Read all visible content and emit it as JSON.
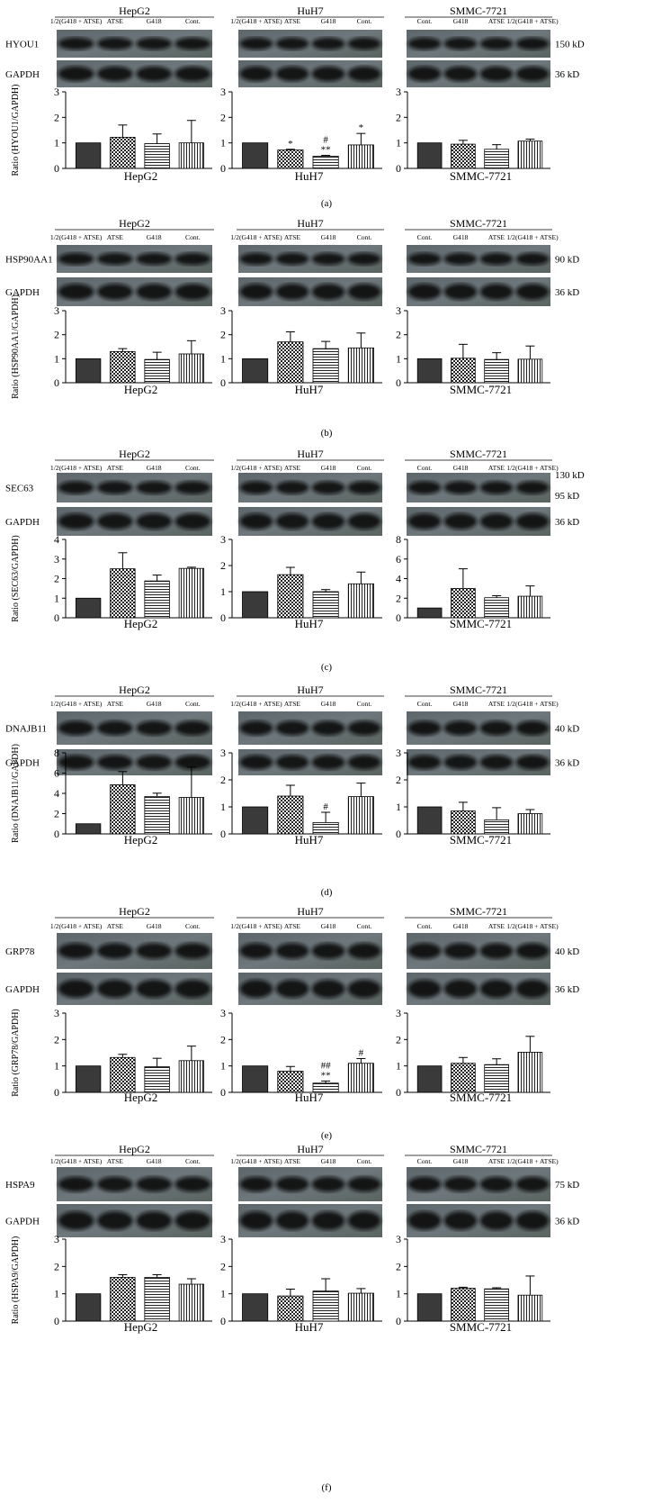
{
  "lines": [
    "HepG2",
    "HuH7",
    "SMMC-7721"
  ],
  "ratio_axis_prefix": "Ratio",
  "legend": {
    "short": [
      {
        "key": "cont",
        "label": "Cont",
        "pattern": "solid"
      },
      {
        "key": "atse",
        "label": "ATSE",
        "pattern": "hlines"
      },
      {
        "key": "g418",
        "label": "G418",
        "pattern": "checker"
      },
      {
        "key": "half",
        "label": "1/2(G418 + ATSE)",
        "pattern": "vlines"
      }
    ],
    "dot": [
      {
        "key": "cont",
        "label": "Cont.",
        "pattern": "solid"
      },
      {
        "key": "atse",
        "label": "ATSE",
        "pattern": "hlines"
      },
      {
        "key": "g418",
        "label": "G418",
        "pattern": "checker"
      },
      {
        "key": "half",
        "label": "1/2(G418 + ATSE)",
        "pattern": "vlines"
      }
    ]
  },
  "lane_label_sets": {
    "rev": [
      "1/2(G418 + ATSE)",
      "ATSE",
      "G418",
      "Cont."
    ],
    "fwd": [
      "Cont.",
      "G418",
      "ATSE",
      "1/2(G418 + ATSE)"
    ],
    "HuH7_rev_wide": [
      "1/2(G418 + ATSE)",
      "ATSE",
      "G418",
      "Cont."
    ]
  },
  "panels": [
    {
      "id": "a",
      "caption": "(a)",
      "protein": "HYOU1",
      "ratio_label": "Ratio (HYOU1/GAPDH)",
      "kd_top": "150 kD",
      "kd_bottom": "36 kD",
      "chart_data": {
        "type": "bar",
        "categories": [
          "Cont",
          "G418",
          "ATSE",
          "1/2(G418 + ATSE)"
        ],
        "ylim": [
          0,
          3
        ],
        "yticks": [
          0,
          1,
          2,
          3
        ],
        "series": [
          {
            "name": "HepG2",
            "values": [
              1.0,
              1.22,
              0.97,
              1.0
            ],
            "errors": [
              0,
              0.48,
              0.38,
              0.88
            ],
            "annotations": [
              "",
              "",
              "",
              ""
            ]
          },
          {
            "name": "HuH7",
            "values": [
              1.0,
              0.72,
              0.48,
              0.92
            ],
            "errors": [
              0,
              0.03,
              0.03,
              0.45
            ],
            "annotations": [
              "",
              "*",
              "#\n**",
              "*"
            ]
          },
          {
            "name": "SMMC-7721",
            "values": [
              1.0,
              0.95,
              0.75,
              1.07
            ],
            "errors": [
              0,
              0.15,
              0.18,
              0.08
            ],
            "annotations": [
              "",
              "",
              "",
              ""
            ]
          }
        ]
      }
    },
    {
      "id": "b",
      "caption": "(b)",
      "protein": "HSP90AA1",
      "ratio_label": "Ratio (HSP90AA1/GAPDH)",
      "kd_top": "90 kD",
      "kd_bottom": "36 kD",
      "chart_data": {
        "type": "bar",
        "categories": [
          "Cont",
          "G418",
          "ATSE",
          "1/2(G418 + ATSE)"
        ],
        "ylim": [
          0,
          3
        ],
        "yticks": [
          0,
          1,
          2,
          3
        ],
        "series": [
          {
            "name": "HepG2",
            "values": [
              1.0,
              1.3,
              0.97,
              1.2
            ],
            "errors": [
              0,
              0.12,
              0.3,
              0.55
            ],
            "annotations": [
              "",
              "",
              "",
              ""
            ]
          },
          {
            "name": "HuH7",
            "values": [
              1.0,
              1.7,
              1.42,
              1.45
            ],
            "errors": [
              0,
              0.42,
              0.3,
              0.62
            ],
            "annotations": [
              "",
              "",
              "",
              ""
            ]
          },
          {
            "name": "SMMC-7721",
            "values": [
              1.0,
              1.02,
              0.97,
              0.98
            ],
            "errors": [
              0,
              0.58,
              0.28,
              0.55
            ],
            "annotations": [
              "",
              "",
              "",
              ""
            ]
          }
        ]
      }
    },
    {
      "id": "c",
      "caption": "(c)",
      "protein": "SEC63",
      "ratio_label": "Ratio (SEC63/GAPDH)",
      "kd_top": "130 kD",
      "kd_mid": "95 kD",
      "kd_bottom": "36 kD",
      "chart_data": {
        "type": "bar",
        "categories": [
          "Cont",
          "G418",
          "ATSE",
          "1/2(G418 + ATSE)"
        ],
        "series": [
          {
            "name": "HepG2",
            "ylim": [
              0,
              4
            ],
            "yticks": [
              0,
              1,
              2,
              3,
              4
            ],
            "values": [
              1.0,
              2.5,
              1.88,
              2.52
            ],
            "errors": [
              0,
              0.82,
              0.3,
              0.06
            ],
            "annotations": [
              "",
              "",
              "",
              ""
            ]
          },
          {
            "name": "HuH7",
            "ylim": [
              0,
              3
            ],
            "yticks": [
              0,
              1,
              2,
              3
            ],
            "values": [
              1.0,
              1.65,
              1.0,
              1.3
            ],
            "errors": [
              0,
              0.28,
              0.08,
              0.45
            ],
            "annotations": [
              "",
              "",
              "",
              ""
            ]
          },
          {
            "name": "SMMC-7721",
            "ylim": [
              0,
              8
            ],
            "yticks": [
              0,
              2,
              4,
              6,
              8
            ],
            "values": [
              1.0,
              3.0,
              2.05,
              2.2
            ],
            "errors": [
              0,
              2.0,
              0.2,
              1.05
            ],
            "annotations": [
              "",
              "",
              "",
              ""
            ]
          }
        ]
      }
    },
    {
      "id": "d",
      "caption": "(d)",
      "protein": "DNAJB11",
      "ratio_label": "Ratio (DNAJB11/GAPDH)",
      "kd_top": "40 kD",
      "kd_bottom": "36 kD",
      "chart_data": {
        "type": "bar",
        "categories": [
          "Cont",
          "G418",
          "ATSE",
          "1/2(G418 + ATSE)"
        ],
        "series": [
          {
            "name": "HepG2",
            "ylim": [
              0,
              8
            ],
            "yticks": [
              0,
              2,
              4,
              6,
              8
            ],
            "values": [
              1.0,
              4.85,
              3.7,
              3.6
            ],
            "errors": [
              0,
              1.3,
              0.32,
              3.0
            ],
            "annotations": [
              "",
              "",
              "",
              ""
            ]
          },
          {
            "name": "HuH7",
            "ylim": [
              0,
              3
            ],
            "yticks": [
              0,
              1,
              2,
              3
            ],
            "values": [
              1.0,
              1.4,
              0.42,
              1.38
            ],
            "errors": [
              0,
              0.4,
              0.38,
              0.5
            ],
            "annotations": [
              "",
              "",
              "#",
              ""
            ]
          },
          {
            "name": "SMMC-7721",
            "ylim": [
              0,
              3
            ],
            "yticks": [
              0,
              1,
              2,
              3
            ],
            "values": [
              1.0,
              0.85,
              0.52,
              0.75
            ],
            "errors": [
              0,
              0.32,
              0.45,
              0.15
            ],
            "annotations": [
              "",
              "",
              "",
              ""
            ]
          }
        ]
      }
    },
    {
      "id": "e",
      "caption": "(e)",
      "protein": "GRP78",
      "ratio_label": "Ratio (GRP78/GAPDH)",
      "kd_top": "40 kD",
      "kd_bottom": "36 kD",
      "chart_data": {
        "type": "bar",
        "categories": [
          "Cont",
          "G418",
          "ATSE",
          "1/2(G418 + ATSE)"
        ],
        "ylim": [
          0,
          3
        ],
        "yticks": [
          0,
          1,
          2,
          3
        ],
        "series": [
          {
            "name": "HepG2",
            "values": [
              1.0,
              1.32,
              0.97,
              1.2
            ],
            "errors": [
              0,
              0.12,
              0.32,
              0.55
            ],
            "annotations": [
              "",
              "",
              "",
              ""
            ]
          },
          {
            "name": "HuH7",
            "values": [
              1.0,
              0.8,
              0.35,
              1.1
            ],
            "errors": [
              0,
              0.18,
              0.08,
              0.18
            ],
            "annotations": [
              "",
              "",
              "##\n**",
              "#"
            ]
          },
          {
            "name": "SMMC-7721",
            "values": [
              1.0,
              1.1,
              1.05,
              1.52
            ],
            "errors": [
              0,
              0.22,
              0.22,
              0.6
            ],
            "annotations": [
              "",
              "",
              "",
              ""
            ]
          }
        ]
      }
    },
    {
      "id": "f",
      "caption": "(f)",
      "protein": "HSPA9",
      "ratio_label": "Ratio (HSPA9/GAPDH)",
      "kd_top": "75 kD",
      "kd_bottom": "36 kD",
      "chart_data": {
        "type": "bar",
        "categories": [
          "Cont",
          "G418",
          "ATSE",
          "1/2(G418 + ATSE)"
        ],
        "ylim": [
          0,
          3
        ],
        "yticks": [
          0,
          1,
          2,
          3
        ],
        "series": [
          {
            "name": "HepG2",
            "values": [
              1.0,
              1.6,
              1.6,
              1.35
            ],
            "errors": [
              0,
              0.1,
              0.1,
              0.2
            ],
            "annotations": [
              "",
              "",
              "",
              ""
            ]
          },
          {
            "name": "HuH7",
            "values": [
              1.0,
              0.92,
              1.1,
              1.02
            ],
            "errors": [
              0,
              0.25,
              0.45,
              0.17
            ],
            "annotations": [
              "",
              "",
              "",
              ""
            ]
          },
          {
            "name": "SMMC-7721",
            "values": [
              1.0,
              1.2,
              1.18,
              0.95
            ],
            "errors": [
              0,
              0.04,
              0.04,
              0.7
            ],
            "annotations": [
              "",
              "",
              "",
              ""
            ]
          }
        ]
      }
    }
  ]
}
